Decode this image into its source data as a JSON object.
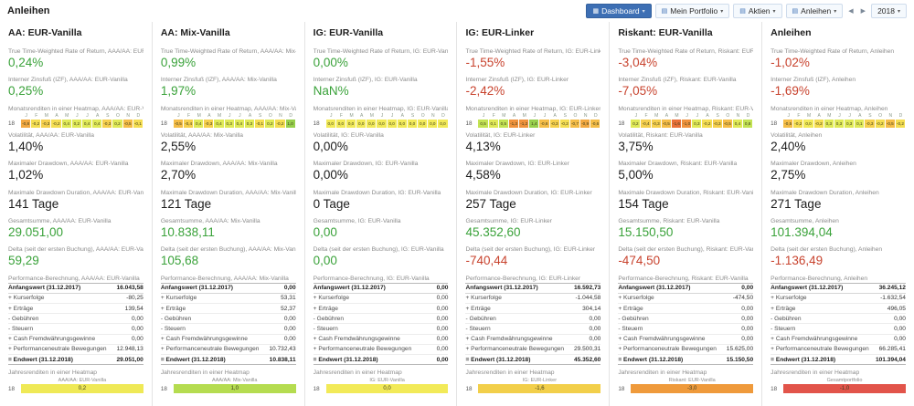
{
  "page": {
    "title": "Anleihen"
  },
  "toolbar": {
    "dashboard": "Dashboard",
    "mein_portfolio": "Mein Portfolio",
    "aktien": "Aktien",
    "anleihen": "Anleihen",
    "year": "2018"
  },
  "heatmap_months": [
    "J",
    "F",
    "M",
    "A",
    "M",
    "J",
    "J",
    "A",
    "S",
    "O",
    "N",
    "D"
  ],
  "heatmap_row_year": "18",
  "columns": [
    {
      "title": "AA: EUR-Vanilla",
      "labels": {
        "ttwror": "True Time-Weighted Rate of Return, AAA/AA: EUR-Vanilla",
        "izf": "Interner Zinsfuß (IZF), AAA/AA: EUR-Vanilla",
        "monthly": "Monatsrenditen in einer Heatmap, AAA/AA: EUR-Vanilla",
        "volatility": "Volatilität, AAA/AA: EUR-Vanilla",
        "max_drawdown": "Maximaler Drawdown, AAA/AA: EUR-Vanilla",
        "drawdown_duration": "Maximale Drawdown Duration, AAA/AA: EUR-Vanilla",
        "total": "Gesamtsumme, AAA/AA: EUR-Vanilla",
        "delta": "Delta (seit der ersten Buchung), AAA/AA: EUR-Vanilla",
        "performance": "Performance-Berechnung, AAA/AA: EUR-Vanilla",
        "annual": "Jahresrenditen in einer Heatmap"
      },
      "ttwror": {
        "text": "0,24%",
        "color": "green"
      },
      "izf": {
        "text": "0,25%",
        "color": "green"
      },
      "monthly_returns": [
        -0.8,
        -0.2,
        -0.3,
        -0.2,
        0.4,
        0.2,
        0.4,
        0.4,
        -0.3,
        0.2,
        -0.5,
        -0.1
      ],
      "volatility": "1,40%",
      "max_drawdown": "1,02%",
      "drawdown_duration": "141 Tage",
      "total": {
        "text": "29.051,00",
        "color": "green"
      },
      "delta": {
        "text": "59,29",
        "color": "green"
      },
      "performance": {
        "rows": [
          {
            "label": "Anfangswert (31.12.2017)",
            "value": "16.043,58",
            "strong": true
          },
          {
            "label": "+ Kurserfolge",
            "value": "-80,25"
          },
          {
            "label": "+ Erträge",
            "value": "139,54"
          },
          {
            "label": "- Gebühren",
            "value": "0,00"
          },
          {
            "label": "- Steuern",
            "value": "0,00"
          },
          {
            "label": "+ Cash Fremdwährungsgewinne",
            "value": "0,00"
          },
          {
            "label": "+ Performanceneutrale Bewegungen",
            "value": "12.948,13"
          },
          {
            "label": "= Endwert (31.12.2018)",
            "value": "29.051,00",
            "strong": true
          }
        ]
      },
      "annual": {
        "name": "AAA/AA: EUR-Vanilla",
        "value": "0,2",
        "color": "#efe956"
      }
    },
    {
      "title": "AA: Mix-Vanilla",
      "labels": {
        "ttwror": "True Time-Weighted Rate of Return, AAA/AA: Mix-Vanilla",
        "izf": "Interner Zinsfuß (IZF), AAA/AA: Mix-Vanilla",
        "monthly": "Monatsrenditen in einer Heatmap, AAA/AA: Mix-Vanilla",
        "volatility": "Volatilität, AAA/AA: Mix-Vanilla",
        "max_drawdown": "Maximaler Drawdown, AAA/AA: Mix-Vanilla",
        "drawdown_duration": "Maximale Drawdown Duration, AAA/AA: Mix-Vanilla",
        "total": "Gesamtsumme, AAA/AA: Mix-Vanilla",
        "delta": "Delta (seit der ersten Buchung), AAA/AA: Mix-Vanilla",
        "performance": "Performance-Berechnung, AAA/AA: Mix-Vanilla",
        "annual": "Jahresrenditen in einer Heatmap"
      },
      "ttwror": {
        "text": "0,99%",
        "color": "green"
      },
      "izf": {
        "text": "1,97%",
        "color": "green"
      },
      "monthly_returns": [
        -0.5,
        -0.4,
        0.4,
        -0.3,
        0.4,
        0.3,
        0.4,
        0.3,
        -0.1,
        0.2,
        -0.2,
        1.0
      ],
      "volatility": "2,55%",
      "max_drawdown": "2,70%",
      "drawdown_duration": "121 Tage",
      "total": {
        "text": "10.838,11",
        "color": "green"
      },
      "delta": {
        "text": "105,68",
        "color": "green"
      },
      "performance": {
        "rows": [
          {
            "label": "Anfangswert (31.12.2017)",
            "value": "0,00",
            "strong": true
          },
          {
            "label": "+ Kurserfolge",
            "value": "53,31"
          },
          {
            "label": "+ Erträge",
            "value": "52,37"
          },
          {
            "label": "- Gebühren",
            "value": "0,00"
          },
          {
            "label": "- Steuern",
            "value": "0,00"
          },
          {
            "label": "+ Cash Fremdwährungsgewinne",
            "value": "0,00"
          },
          {
            "label": "+ Performanceneutrale Bewegungen",
            "value": "10.732,43"
          },
          {
            "label": "= Endwert (31.12.2018)",
            "value": "10.838,11",
            "strong": true
          }
        ]
      },
      "annual": {
        "name": "AAA/AA: Mix-Vanilla",
        "value": "1,0",
        "color": "#b5dc50"
      }
    },
    {
      "title": "IG: EUR-Vanilla",
      "labels": {
        "ttwror": "True Time-Weighted Rate of Return, IG: EUR-Vanilla",
        "izf": "Interner Zinsfuß (IZF), IG: EUR-Vanilla",
        "monthly": "Monatsrenditen in einer Heatmap, IG: EUR-Vanilla",
        "volatility": "Volatilität, IG: EUR-Vanilla",
        "max_drawdown": "Maximaler Drawdown, IG: EUR-Vanilla",
        "drawdown_duration": "Maximale Drawdown Duration, IG: EUR-Vanilla",
        "total": "Gesamtsumme, IG: EUR-Vanilla",
        "delta": "Delta (seit der ersten Buchung), IG: EUR-Vanilla",
        "performance": "Performance-Berechnung, IG: EUR-Vanilla",
        "annual": "Jahresrenditen in einer Heatmap"
      },
      "ttwror": {
        "text": "0,00%",
        "color": "green"
      },
      "izf": {
        "text": "NaN%",
        "color": "green"
      },
      "monthly_returns": [
        0.0,
        0.0,
        0.0,
        0.0,
        0.0,
        0.0,
        0.0,
        0.0,
        0.0,
        0.0,
        0.0,
        0.0
      ],
      "volatility": "0,00%",
      "max_drawdown": "0,00%",
      "drawdown_duration": "0 Tage",
      "total": {
        "text": "0,00",
        "color": "green"
      },
      "delta": {
        "text": "0,00",
        "color": "green"
      },
      "performance": {
        "rows": [
          {
            "label": "Anfangswert (31.12.2017)",
            "value": "0,00",
            "strong": true
          },
          {
            "label": "+ Kurserfolge",
            "value": "0,00"
          },
          {
            "label": "+ Erträge",
            "value": "0,00"
          },
          {
            "label": "- Gebühren",
            "value": "0,00"
          },
          {
            "label": "- Steuern",
            "value": "0,00"
          },
          {
            "label": "+ Cash Fremdwährungsgewinne",
            "value": "0,00"
          },
          {
            "label": "+ Performanceneutrale Bewegungen",
            "value": "0,00"
          },
          {
            "label": "= Endwert (31.12.2018)",
            "value": "0,00",
            "strong": true
          }
        ]
      },
      "annual": {
        "name": "IG: EUR-Vanilla",
        "value": "0,0",
        "color": "#f2ea58"
      }
    },
    {
      "title": "IG: EUR-Linker",
      "labels": {
        "ttwror": "True Time-Weighted Rate of Return, IG: EUR-Linker",
        "izf": "Interner Zinsfuß (IZF), IG: EUR-Linker",
        "monthly": "Monatsrenditen in einer Heatmap, IG: EUR-Linker",
        "volatility": "Volatilität, IG: EUR-Linker",
        "max_drawdown": "Maximaler Drawdown, IG: EUR-Linker",
        "drawdown_duration": "Maximale Drawdown Duration, IG: EUR-Linker",
        "total": "Gesamtsumme, IG: EUR-Linker",
        "delta": "Delta (seit der ersten Buchung), IG: EUR-Linker",
        "performance": "Performance-Berechnung, IG: EUR-Linker",
        "annual": "Jahresrenditen in einer Heatmap"
      },
      "ttwror": {
        "text": "-1,55%",
        "color": "red"
      },
      "izf": {
        "text": "-2,42%",
        "color": "red"
      },
      "monthly_returns": [
        0.5,
        0.1,
        0.5,
        -1.3,
        -1.2,
        1.4,
        -0.6,
        -0.3,
        -0.2,
        -0.7,
        -0.9,
        -0.6
      ],
      "volatility": "4,13%",
      "max_drawdown": "4,58%",
      "drawdown_duration": "257 Tage",
      "total": {
        "text": "45.352,60",
        "color": "green"
      },
      "delta": {
        "text": "-740,44",
        "color": "red"
      },
      "performance": {
        "rows": [
          {
            "label": "Anfangswert (31.12.2017)",
            "value": "16.592,73",
            "strong": true
          },
          {
            "label": "+ Kurserfolge",
            "value": "-1.044,58"
          },
          {
            "label": "+ Erträge",
            "value": "304,14"
          },
          {
            "label": "- Gebühren",
            "value": "0,00"
          },
          {
            "label": "- Steuern",
            "value": "0,00"
          },
          {
            "label": "+ Cash Fremdwährungsgewinne",
            "value": "0,00"
          },
          {
            "label": "+ Performanceneutrale Bewegungen",
            "value": "29.500,31"
          },
          {
            "label": "= Endwert (31.12.2018)",
            "value": "45.352,60",
            "strong": true
          }
        ]
      },
      "annual": {
        "name": "IG: EUR-Linker",
        "value": "-1,6",
        "color": "#f2cf4a"
      }
    },
    {
      "title": "Riskant: EUR-Vanilla",
      "labels": {
        "ttwror": "True Time-Weighted Rate of Return, Riskant: EUR-Vanilla",
        "izf": "Interner Zinsfuß (IZF), Riskant: EUR-Vanilla",
        "monthly": "Monatsrenditen in einer Heatmap, Riskant: EUR-Vanilla",
        "volatility": "Volatilität, Riskant: EUR-Vanilla",
        "max_drawdown": "Maximaler Drawdown, Riskant: EUR-Vanilla",
        "drawdown_duration": "Maximale Drawdown Duration, Riskant: EUR-Vanilla",
        "total": "Gesamtsumme, Riskant: EUR-Vanilla",
        "delta": "Delta (seit der ersten Buchung), Riskant: EUR-Vanilla",
        "performance": "Performance-Berechnung, Riskant: EUR-Vanilla",
        "annual": "Jahresrenditen in einer Heatmap"
      },
      "ttwror": {
        "text": "-3,04%",
        "color": "red"
      },
      "izf": {
        "text": "-7,05%",
        "color": "red"
      },
      "monthly_returns": [
        0.2,
        -0.4,
        -0.3,
        -0.5,
        -1.6,
        -1.0,
        0.3,
        -0.2,
        -0.3,
        -0.5,
        0.4,
        0.8
      ],
      "volatility": "3,75%",
      "max_drawdown": "5,00%",
      "drawdown_duration": "154 Tage",
      "total": {
        "text": "15.150,50",
        "color": "green"
      },
      "delta": {
        "text": "-474,50",
        "color": "red"
      },
      "performance": {
        "rows": [
          {
            "label": "Anfangswert (31.12.2017)",
            "value": "0,00",
            "strong": true
          },
          {
            "label": "+ Kurserfolge",
            "value": "-474,50"
          },
          {
            "label": "+ Erträge",
            "value": "0,00"
          },
          {
            "label": "- Gebühren",
            "value": "0,00"
          },
          {
            "label": "- Steuern",
            "value": "0,00"
          },
          {
            "label": "+ Cash Fremdwährungsgewinne",
            "value": "0,00"
          },
          {
            "label": "+ Performanceneutrale Bewegungen",
            "value": "15.625,00"
          },
          {
            "label": "= Endwert (31.12.2018)",
            "value": "15.150,50",
            "strong": true
          }
        ]
      },
      "annual": {
        "name": "Riskant: EUR-Vanilla",
        "value": "-3,0",
        "color": "#ef9a3b"
      }
    },
    {
      "title": "Anleihen",
      "labels": {
        "ttwror": "True Time-Weighted Rate of Return, Anleihen",
        "izf": "Interner Zinsfuß (IZF), Anleihen",
        "monthly": "Monatsrenditen in einer Heatmap, Anleihen",
        "volatility": "Volatilität, Anleihen",
        "max_drawdown": "Maximaler Drawdown, Anleihen",
        "drawdown_duration": "Maximale Drawdown Duration, Anleihen",
        "total": "Gesamtsumme, Anleihen",
        "delta": "Delta (seit der ersten Buchung), Anleihen",
        "performance": "Performance-Berechnung, Anleihen",
        "annual": "Jahresrenditen in einer Heatmap"
      },
      "ttwror": {
        "text": "-1,02%",
        "color": "red"
      },
      "izf": {
        "text": "-1,69%",
        "color": "red"
      },
      "monthly_returns": [
        -0.5,
        -0.2,
        0.0,
        -0.2,
        0.3,
        0.3,
        0.3,
        0.1,
        -0.3,
        -0.2,
        -0.5,
        -0.2
      ],
      "volatility": "2,40%",
      "max_drawdown": "2,75%",
      "drawdown_duration": "271 Tage",
      "total": {
        "text": "101.394,04",
        "color": "green"
      },
      "delta": {
        "text": "-1.136,49",
        "color": "red"
      },
      "performance": {
        "rows": [
          {
            "label": "Anfangswert (31.12.2017)",
            "value": "36.245,12",
            "strong": true
          },
          {
            "label": "+ Kurserfolge",
            "value": "-1.632,54"
          },
          {
            "label": "+ Erträge",
            "value": "496,05"
          },
          {
            "label": "- Gebühren",
            "value": "0,00"
          },
          {
            "label": "- Steuern",
            "value": "0,00"
          },
          {
            "label": "+ Cash Fremdwährungsgewinne",
            "value": "0,00"
          },
          {
            "label": "+ Performanceneutrale Bewegungen",
            "value": "66.285,41"
          },
          {
            "label": "= Endwert (31.12.2018)",
            "value": "101.394,04",
            "strong": true
          }
        ]
      },
      "annual": {
        "name": "Gesamtportfolio",
        "value": "-1,0",
        "color": "#e2544a"
      }
    }
  ]
}
